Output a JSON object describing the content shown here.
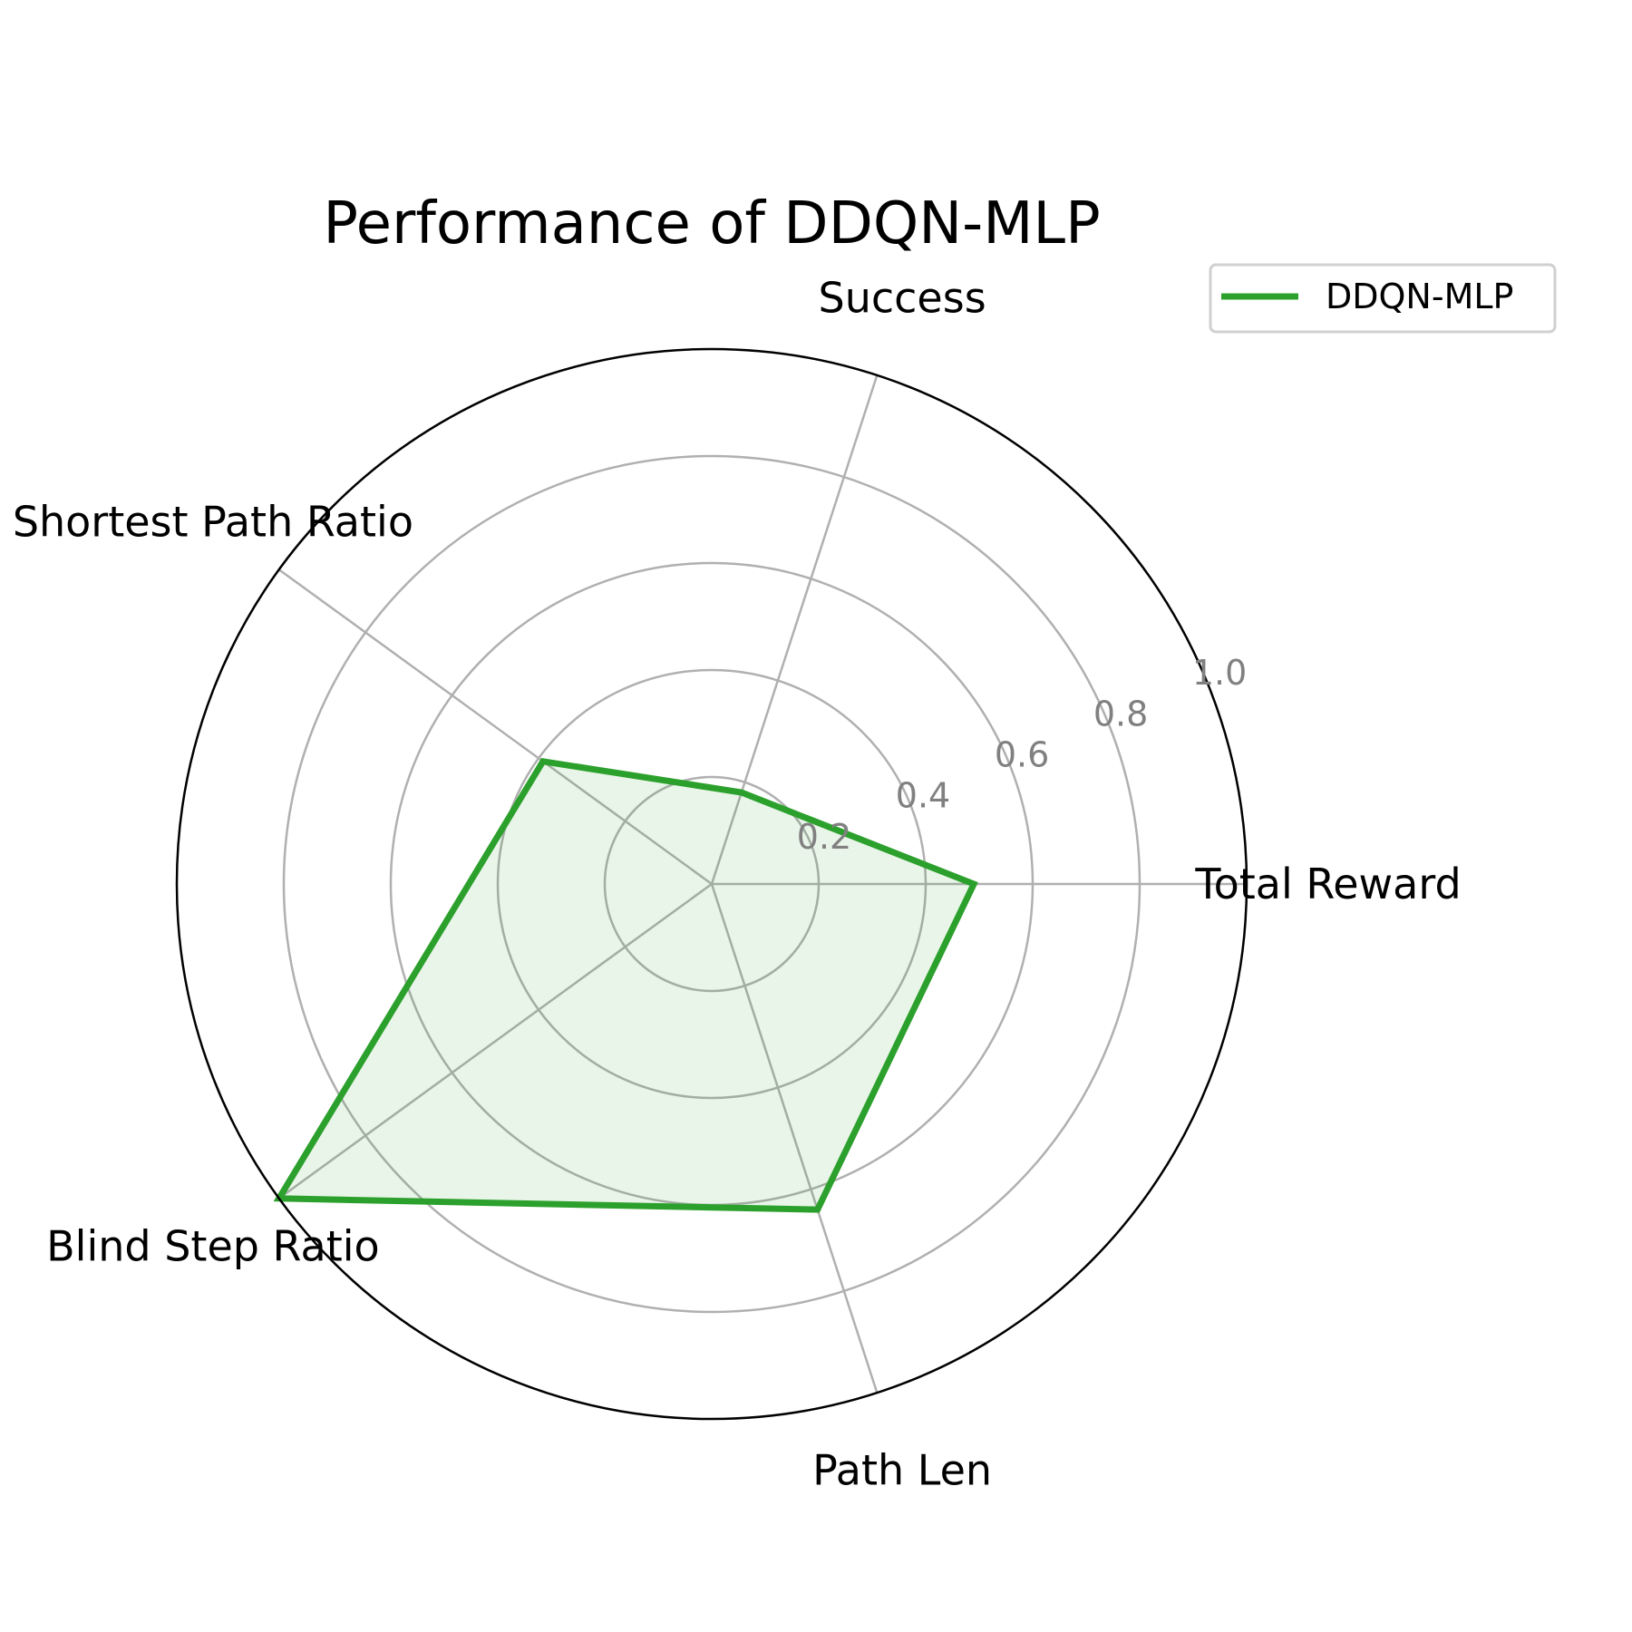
{
  "chart_data": {
    "type": "radar",
    "title": "Performance of DDQN-MLP",
    "categories": [
      "Total Reward",
      "Success",
      "Shortest Path Ratio",
      "Blind Step Ratio",
      "Path Len"
    ],
    "series": [
      {
        "name": "DDQN-MLP",
        "values": [
          0.49,
          0.18,
          0.39,
          1.0,
          0.64
        ],
        "color": "#2ca02c"
      }
    ],
    "rlim": [
      0,
      1.0
    ],
    "rticks": [
      0.2,
      0.4,
      0.6,
      0.8,
      1.0
    ],
    "rtick_labels": [
      "0.2",
      "0.4",
      "0.6",
      "0.8",
      "1.0"
    ],
    "grid": true,
    "legend": "top-right"
  },
  "colors": {
    "grid": "#b0b0b0",
    "frame": "#000000",
    "tick_label": "#808080"
  }
}
